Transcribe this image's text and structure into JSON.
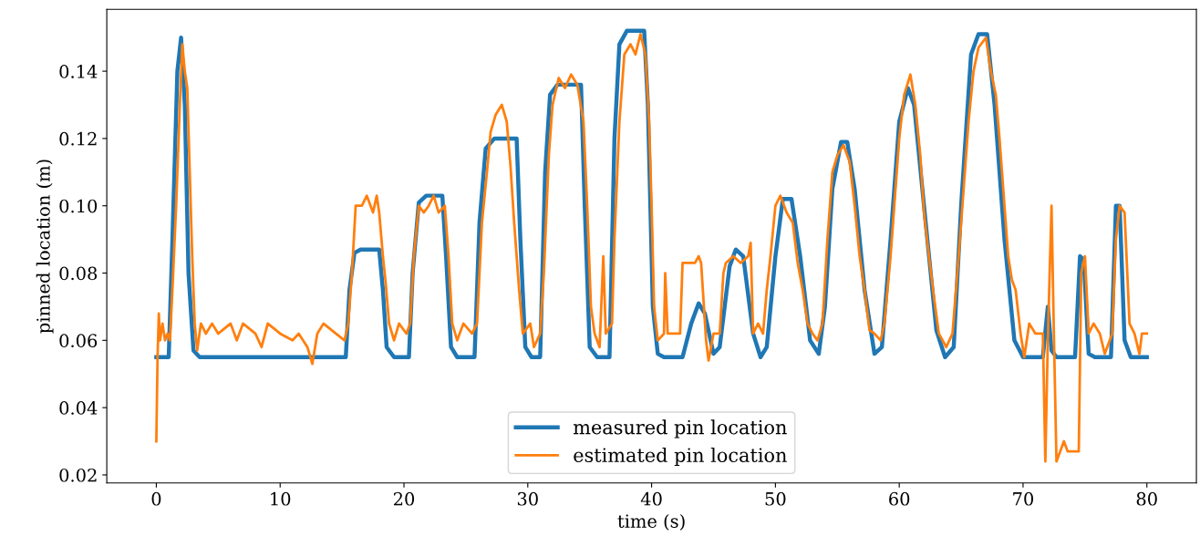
{
  "chart_data": {
    "type": "line",
    "xlabel": "time (s)",
    "ylabel": "pinned location (m)",
    "xlim": [
      -4,
      84
    ],
    "ylim": [
      0.0176,
      0.1584
    ],
    "xticks": [
      0,
      10,
      20,
      30,
      40,
      50,
      60,
      70,
      80
    ],
    "yticks": [
      {
        "value": 0.02,
        "label": "0.02"
      },
      {
        "value": 0.04,
        "label": "0.04"
      },
      {
        "value": 0.06,
        "label": "0.06"
      },
      {
        "value": 0.08,
        "label": "0.08"
      },
      {
        "value": 0.1,
        "label": "0.10"
      },
      {
        "value": 0.12,
        "label": "0.12"
      },
      {
        "value": 0.14,
        "label": "0.14"
      }
    ],
    "legend": "bottom",
    "grid": false,
    "line_style": "solid",
    "series": [
      {
        "name": "measured pin location",
        "color": "#1f77b4",
        "x": [
          0,
          1.0,
          1.3,
          1.7,
          2.0,
          2.3,
          2.6,
          3.0,
          3.5,
          15.3,
          15.6,
          16.0,
          16.5,
          18.0,
          18.3,
          18.6,
          19.2,
          20.4,
          20.7,
          21.2,
          21.8,
          23.1,
          23.4,
          23.8,
          24.3,
          25.7,
          26.1,
          26.6,
          27.3,
          29.1,
          29.4,
          29.8,
          30.3,
          31.0,
          31.4,
          31.8,
          32.4,
          34.3,
          34.6,
          35.0,
          35.6,
          36.6,
          37.0,
          37.4,
          38.0,
          39.4,
          39.7,
          40.1,
          40.5,
          41.0,
          42.5,
          43.2,
          43.8,
          44.3,
          45.0,
          45.5,
          46.3,
          46.8,
          47.4,
          48.2,
          48.8,
          49.3,
          50.0,
          50.6,
          51.3,
          52.0,
          52.8,
          53.5,
          54.0,
          54.6,
          55.3,
          55.8,
          56.4,
          57.2,
          58.0,
          58.6,
          59.3,
          60.0,
          60.7,
          61.2,
          62.0,
          63.0,
          63.7,
          64.4,
          65.0,
          65.8,
          66.4,
          67.1,
          67.7,
          68.5,
          69.3,
          70.0,
          71.6,
          72.0,
          72.3,
          72.7,
          74.2,
          74.6,
          74.9,
          75.3,
          75.8,
          77.1,
          77.5,
          77.8,
          78.2,
          78.7,
          80
        ],
        "values": [
          0.055,
          0.055,
          0.09,
          0.14,
          0.15,
          0.13,
          0.08,
          0.057,
          0.055,
          0.055,
          0.075,
          0.086,
          0.087,
          0.087,
          0.075,
          0.058,
          0.055,
          0.055,
          0.08,
          0.101,
          0.103,
          0.103,
          0.085,
          0.058,
          0.055,
          0.055,
          0.095,
          0.117,
          0.12,
          0.12,
          0.09,
          0.058,
          0.055,
          0.055,
          0.11,
          0.133,
          0.136,
          0.136,
          0.1,
          0.058,
          0.055,
          0.055,
          0.12,
          0.148,
          0.152,
          0.152,
          0.13,
          0.07,
          0.056,
          0.055,
          0.055,
          0.065,
          0.071,
          0.068,
          0.056,
          0.058,
          0.082,
          0.087,
          0.085,
          0.062,
          0.055,
          0.058,
          0.085,
          0.102,
          0.102,
          0.085,
          0.06,
          0.056,
          0.07,
          0.105,
          0.119,
          0.119,
          0.105,
          0.075,
          0.056,
          0.058,
          0.09,
          0.125,
          0.135,
          0.13,
          0.1,
          0.063,
          0.055,
          0.058,
          0.1,
          0.145,
          0.151,
          0.151,
          0.13,
          0.09,
          0.06,
          0.055,
          0.055,
          0.07,
          0.057,
          0.055,
          0.055,
          0.085,
          0.084,
          0.056,
          0.055,
          0.055,
          0.1,
          0.1,
          0.06,
          0.055,
          0.055
        ]
      },
      {
        "name": "estimated pin location",
        "color": "#ff7f0e",
        "x": [
          0,
          0.1,
          0.2,
          0.3,
          0.5,
          0.7,
          0.9,
          1.1,
          1.3,
          1.6,
          1.9,
          2.1,
          2.3,
          2.5,
          2.7,
          2.9,
          3.1,
          3.3,
          3.6,
          4.0,
          4.5,
          5.0,
          6.0,
          6.5,
          7.0,
          8.0,
          8.5,
          9.0,
          10.0,
          11.0,
          11.5,
          12.2,
          12.6,
          13.0,
          13.5,
          14.5,
          15.2,
          15.5,
          15.8,
          16.1,
          16.6,
          17.0,
          17.5,
          17.8,
          18.0,
          18.3,
          18.5,
          18.8,
          19.2,
          19.6,
          20.2,
          20.5,
          20.8,
          21.2,
          21.6,
          22.0,
          22.4,
          22.8,
          23.3,
          23.6,
          23.9,
          24.3,
          24.8,
          25.5,
          25.9,
          26.3,
          26.7,
          27.0,
          27.4,
          27.9,
          28.3,
          28.6,
          28.9,
          29.3,
          29.6,
          30.2,
          30.5,
          31.0,
          31.3,
          31.7,
          32.0,
          32.5,
          33.0,
          33.5,
          34.0,
          34.5,
          34.8,
          35.1,
          35.4,
          35.8,
          36.1,
          36.3,
          36.8,
          37.0,
          37.4,
          37.8,
          38.3,
          38.7,
          39.1,
          39.5,
          39.8,
          40.0,
          40.2,
          40.5,
          41.0,
          41.1,
          41.3,
          42.3,
          42.5,
          43.5,
          43.8,
          44.0,
          44.4,
          44.6,
          45.0,
          45.5,
          45.8,
          46.0,
          46.6,
          47.2,
          47.8,
          48.0,
          48.2,
          48.6,
          49.0,
          49.3,
          49.6,
          50.0,
          50.4,
          50.9,
          51.4,
          51.8,
          52.2,
          52.6,
          53.0,
          53.4,
          53.8,
          54.2,
          54.6,
          55.0,
          55.5,
          56.0,
          56.4,
          56.8,
          57.2,
          57.6,
          58.0,
          58.5,
          58.8,
          59.3,
          59.7,
          60.0,
          60.4,
          60.9,
          61.3,
          61.7,
          62.0,
          62.4,
          62.8,
          63.2,
          63.8,
          64.3,
          64.8,
          65.2,
          65.6,
          66.0,
          66.4,
          67.0,
          67.4,
          67.8,
          68.1,
          68.5,
          68.8,
          69.1,
          69.4,
          69.8,
          70.1,
          70.5,
          71.0,
          71.6,
          71.8,
          72.0,
          72.3,
          72.5,
          72.7,
          73.0,
          73.3,
          73.6,
          74.5,
          74.7,
          75.0,
          75.3,
          75.7,
          76.2,
          76.6,
          77.2,
          77.5,
          77.8,
          78.2,
          78.6,
          79.0,
          79.4,
          79.6,
          80
        ],
        "values": [
          0.03,
          0.055,
          0.068,
          0.06,
          0.065,
          0.06,
          0.062,
          0.06,
          0.075,
          0.1,
          0.13,
          0.148,
          0.14,
          0.135,
          0.11,
          0.085,
          0.065,
          0.057,
          0.065,
          0.062,
          0.065,
          0.062,
          0.065,
          0.06,
          0.065,
          0.062,
          0.058,
          0.065,
          0.062,
          0.06,
          0.062,
          0.058,
          0.053,
          0.062,
          0.065,
          0.062,
          0.06,
          0.065,
          0.08,
          0.1,
          0.1,
          0.103,
          0.098,
          0.103,
          0.098,
          0.085,
          0.078,
          0.065,
          0.06,
          0.065,
          0.062,
          0.065,
          0.085,
          0.1,
          0.098,
          0.1,
          0.103,
          0.098,
          0.1,
          0.085,
          0.065,
          0.06,
          0.065,
          0.062,
          0.065,
          0.095,
          0.11,
          0.122,
          0.127,
          0.13,
          0.125,
          0.112,
          0.095,
          0.075,
          0.062,
          0.065,
          0.058,
          0.062,
          0.08,
          0.115,
          0.13,
          0.138,
          0.135,
          0.139,
          0.136,
          0.125,
          0.1,
          0.07,
          0.062,
          0.058,
          0.085,
          0.062,
          0.065,
          0.09,
          0.125,
          0.145,
          0.148,
          0.145,
          0.151,
          0.145,
          0.125,
          0.1,
          0.07,
          0.06,
          0.062,
          0.08,
          0.062,
          0.062,
          0.083,
          0.083,
          0.085,
          0.083,
          0.06,
          0.054,
          0.062,
          0.062,
          0.08,
          0.083,
          0.085,
          0.083,
          0.085,
          0.089,
          0.062,
          0.065,
          0.062,
          0.075,
          0.085,
          0.1,
          0.103,
          0.098,
          0.095,
          0.083,
          0.075,
          0.065,
          0.062,
          0.06,
          0.065,
          0.09,
          0.11,
          0.115,
          0.118,
          0.113,
          0.1,
          0.085,
          0.075,
          0.063,
          0.062,
          0.06,
          0.065,
          0.085,
          0.105,
          0.12,
          0.133,
          0.139,
          0.13,
          0.115,
          0.098,
          0.085,
          0.073,
          0.062,
          0.058,
          0.062,
          0.085,
          0.105,
          0.125,
          0.14,
          0.147,
          0.15,
          0.14,
          0.133,
          0.12,
          0.1,
          0.085,
          0.078,
          0.075,
          0.062,
          0.055,
          0.065,
          0.062,
          0.062,
          0.024,
          0.06,
          0.1,
          0.06,
          0.024,
          0.027,
          0.03,
          0.027,
          0.027,
          0.08,
          0.085,
          0.062,
          0.065,
          0.062,
          0.056,
          0.062,
          0.09,
          0.1,
          0.098,
          0.065,
          0.062,
          0.056,
          0.062,
          0.062
        ]
      }
    ]
  }
}
